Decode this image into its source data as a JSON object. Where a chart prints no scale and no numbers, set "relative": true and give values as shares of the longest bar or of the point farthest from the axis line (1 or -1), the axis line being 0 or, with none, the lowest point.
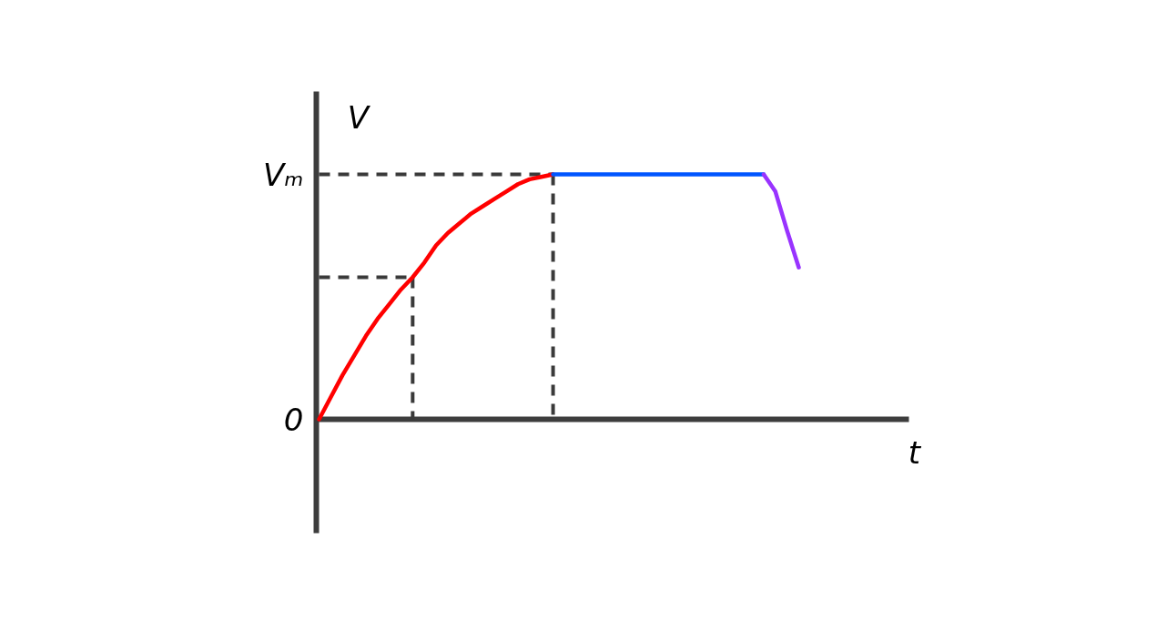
{
  "chart_data": {
    "type": "line",
    "relative": true,
    "xlabel": "t",
    "ylabel": "V",
    "categories": [
      null,
      null,
      null,
      null,
      null,
      null,
      null,
      null,
      null,
      null,
      null,
      null,
      null,
      null,
      null,
      null,
      null,
      null,
      null,
      null,
      null,
      null,
      null,
      null,
      null,
      null,
      null,
      null,
      null,
      null,
      null,
      null,
      null,
      null,
      null,
      null,
      null,
      null,
      null,
      null,
      null,
      null
    ],
    "series": [
      {
        "color": "#ff0000",
        "values": [
          0,
          0.09,
          0.18,
          0.26,
          0.34,
          0.41,
          0.47,
          0.53,
          0.58,
          0.64,
          0.71,
          0.76,
          0.8,
          0.84,
          0.87,
          0.9,
          0.93,
          0.96,
          0.98,
          0.99,
          1,
          null,
          null,
          null,
          null,
          null,
          null,
          null,
          null,
          null,
          null,
          null,
          null,
          null,
          null,
          null,
          null,
          null,
          null,
          null,
          null,
          null
        ]
      },
      {
        "color": "#0055ff",
        "values": [
          null,
          null,
          null,
          null,
          null,
          null,
          null,
          null,
          null,
          null,
          null,
          null,
          null,
          null,
          null,
          null,
          null,
          null,
          null,
          null,
          1,
          1,
          1,
          1,
          1,
          1,
          1,
          1,
          1,
          1,
          1,
          1,
          1,
          1,
          1,
          1,
          1,
          1,
          1,
          null,
          null,
          null
        ]
      },
      {
        "color": "#9933ff",
        "values": [
          null,
          null,
          null,
          null,
          null,
          null,
          null,
          null,
          null,
          null,
          null,
          null,
          null,
          null,
          null,
          null,
          null,
          null,
          null,
          null,
          null,
          null,
          null,
          null,
          null,
          null,
          null,
          null,
          null,
          null,
          null,
          null,
          null,
          null,
          null,
          null,
          null,
          null,
          1,
          0.93,
          0.77,
          0.62
        ]
      }
    ],
    "ref_lines": [
      {
        "axis": "y",
        "value": 1,
        "label": "Vₘ",
        "color": "#3a3a3a",
        "line_style": "dashed"
      },
      {
        "axis": "y",
        "value": 0.58,
        "color": "#3a3a3a",
        "line_style": "dashed"
      }
    ],
    "annotations": [
      "0"
    ]
  }
}
